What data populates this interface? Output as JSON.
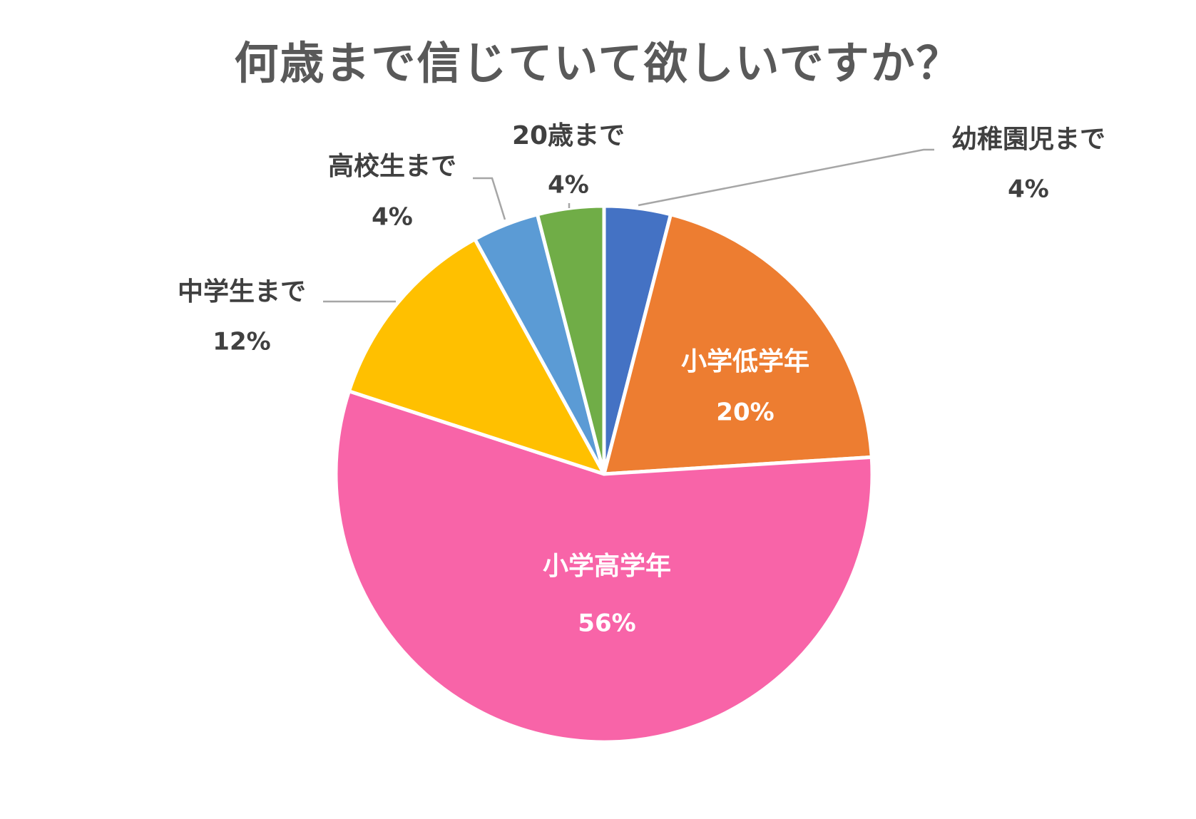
{
  "chart_data": {
    "type": "pie",
    "title": "何歳まで信じていて欲しいですか？",
    "start_angle_deg": 0,
    "direction": "clockwise",
    "slices": [
      {
        "label": "幼稚園児まで",
        "value": 4,
        "value_label": "4%",
        "color": "#4472C4"
      },
      {
        "label": "小学低学年",
        "value": 20,
        "value_label": "20%",
        "color": "#ED7D31"
      },
      {
        "label": "小学高学年",
        "value": 56,
        "value_label": "56%",
        "color": "#F864A8"
      },
      {
        "label": "中学生まで",
        "value": 12,
        "value_label": "12%",
        "color": "#FFC000"
      },
      {
        "label": "高校生まで",
        "value": 4,
        "value_label": "4%",
        "color": "#5B9BD5"
      },
      {
        "label": "20歳まで",
        "value": 4,
        "value_label": "4%",
        "color": "#70AD47"
      }
    ]
  }
}
